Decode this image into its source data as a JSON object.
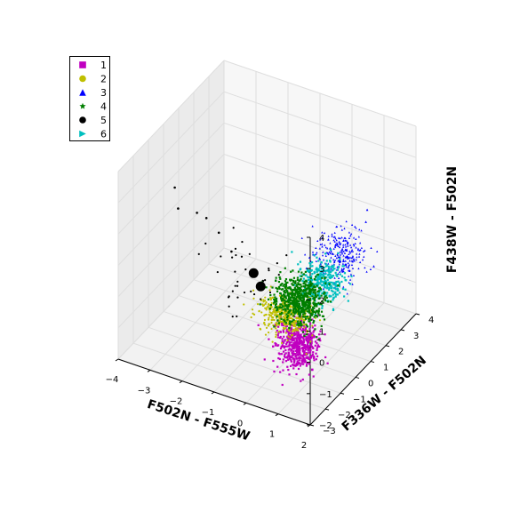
{
  "chart_data": {
    "type": "scatter",
    "projection": "3d",
    "xlabel": "F502N - F555W",
    "ylabel": "F336W - F502N",
    "zlabel": "F438W - F502N",
    "xlim": [
      -4,
      2
    ],
    "ylim": [
      -3,
      4
    ],
    "zlim": [
      -2,
      4
    ],
    "x_ticks": [
      "−4",
      "−3",
      "−2",
      "−1",
      "0",
      "1",
      "2"
    ],
    "y_ticks": [
      "−3",
      "−2",
      "−1",
      "0",
      "1",
      "2",
      "3",
      "4"
    ],
    "z_ticks": [
      "−2",
      "−1",
      "0",
      "1",
      "2",
      "3",
      "4"
    ],
    "grid": true,
    "legend_position": "top-left",
    "series": [
      {
        "name": "1",
        "marker": "square",
        "color": "#c000c0",
        "center": [
          0.2,
          0.0,
          -1.6
        ],
        "spread": [
          0.3,
          0.3,
          0.35
        ],
        "points": [
          [
            0.0,
            -0.2,
            -1.9
          ],
          [
            0.5,
            0.3,
            -1.4
          ],
          [
            0.3,
            -0.1,
            -2.1
          ],
          [
            -0.1,
            0.2,
            -1.3
          ],
          [
            0.6,
            0.1,
            -2.3
          ]
        ]
      },
      {
        "name": "2",
        "marker": "circle",
        "color": "#bfbf00",
        "center": [
          -0.2,
          0.0,
          -0.8
        ],
        "spread": [
          0.35,
          0.3,
          0.25
        ],
        "points": [
          [
            -0.6,
            -0.2,
            -0.6
          ],
          [
            0.1,
            0.3,
            -0.9
          ],
          [
            -0.4,
            0.1,
            -1.1
          ],
          [
            0.2,
            -0.3,
            -0.5
          ]
        ]
      },
      {
        "name": "3",
        "marker": "triangle-up",
        "color": "#0000ff",
        "center": [
          0.6,
          2.0,
          0.4
        ],
        "spread": [
          0.35,
          0.45,
          0.35
        ],
        "points": [
          [
            1.0,
            2.8,
            1.2
          ],
          [
            0.4,
            1.6,
            0.1
          ],
          [
            0.9,
            3.1,
            1.4
          ],
          [
            0.3,
            1.8,
            0.9
          ],
          [
            1.2,
            2.9,
            -0.2
          ]
        ]
      },
      {
        "name": "4",
        "marker": "star",
        "color": "#007f00",
        "center": [
          0.0,
          0.5,
          -0.5
        ],
        "spread": [
          0.35,
          0.4,
          0.3
        ],
        "points": [
          [
            -0.3,
            0.2,
            -0.2
          ],
          [
            0.3,
            0.9,
            -0.7
          ],
          [
            -0.1,
            0.7,
            -0.9
          ],
          [
            0.4,
            0.3,
            -0.3
          ]
        ]
      },
      {
        "name": "5",
        "marker": "circle",
        "color": "#000000",
        "center": [
          -1.2,
          -0.6,
          0.6
        ],
        "spread": [
          0.5,
          0.5,
          0.6
        ],
        "points": [
          [
            -2.8,
            -1.8,
            3.3
          ],
          [
            -2.6,
            -2.0,
            2.8
          ],
          [
            -2.2,
            -1.6,
            2.6
          ],
          [
            -2.0,
            -1.4,
            2.4
          ],
          [
            -1.8,
            -1.0,
            1.8
          ],
          [
            -1.5,
            -0.8,
            1.2
          ],
          [
            -1.0,
            -0.5,
            0.6
          ],
          [
            -0.8,
            -0.2,
            0.2
          ]
        ]
      },
      {
        "name": "6",
        "marker": "triangle-right",
        "color": "#00bfbf",
        "center": [
          0.4,
          1.2,
          -0.1
        ],
        "spread": [
          0.3,
          0.35,
          0.3
        ],
        "points": [
          [
            0.6,
            1.5,
            0.3
          ],
          [
            0.2,
            0.9,
            -0.4
          ],
          [
            0.5,
            1.4,
            -0.2
          ]
        ]
      }
    ]
  }
}
